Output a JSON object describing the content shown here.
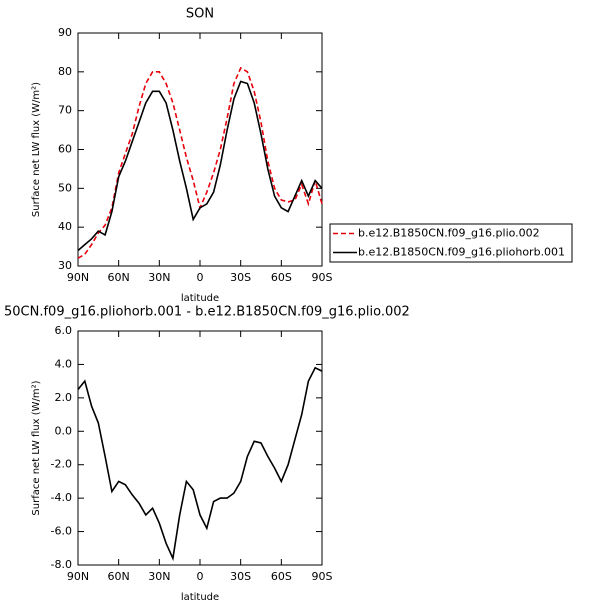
{
  "chart_data": [
    {
      "type": "line",
      "title": "SON",
      "xlabel": "latitude",
      "ylabel": "Surface net LW flux (W/m²)",
      "x": [
        90,
        85,
        80,
        75,
        70,
        65,
        60,
        55,
        50,
        45,
        40,
        35,
        30,
        25,
        20,
        15,
        10,
        5,
        0,
        -5,
        -10,
        -15,
        -20,
        -25,
        -30,
        -35,
        -40,
        -45,
        -50,
        -55,
        -60,
        -65,
        -70,
        -75,
        -80,
        -85,
        -90
      ],
      "series": [
        {
          "name": "b.e12.B1850CN.f09_g16.plio.002",
          "color": "#e8000b",
          "dash": true,
          "values": [
            32,
            33,
            35.5,
            38.5,
            40.5,
            45,
            54,
            59,
            64,
            71,
            77,
            80,
            80,
            77,
            72,
            65,
            58,
            52,
            45,
            49,
            54,
            60,
            68,
            77,
            81,
            80,
            75,
            67,
            57,
            50,
            47,
            46.5,
            47,
            51,
            46,
            52,
            46
          ]
        },
        {
          "name": "b.e12.B1850CN.f09_g16.pliohorb.001",
          "color": "#000000",
          "dash": false,
          "values": [
            34,
            35.5,
            37,
            39,
            38,
            44,
            53,
            57,
            62,
            67,
            72,
            75,
            75,
            72,
            65,
            57,
            50,
            42,
            45,
            46,
            49,
            56,
            65,
            73,
            77.5,
            77,
            72,
            64,
            55,
            48,
            45,
            44,
            48,
            52,
            48,
            52,
            50
          ]
        }
      ],
      "xlim": [
        90,
        -90
      ],
      "ylim": [
        30,
        90
      ],
      "xticks": [
        {
          "value": 90,
          "label": "90N"
        },
        {
          "value": 60,
          "label": "60N"
        },
        {
          "value": 30,
          "label": "30N"
        },
        0,
        {
          "value": -30,
          "label": "30S"
        },
        {
          "value": -60,
          "label": "60S"
        },
        {
          "value": -90,
          "label": "90S"
        }
      ],
      "yticks": [
        30,
        40,
        50,
        60,
        70,
        80,
        90
      ],
      "legend": "outside-right"
    },
    {
      "type": "line",
      "title": "50CN.f09_g16.pliohorb.001 - b.e12.B1850CN.f09_g16.plio.002",
      "xlabel": "latitude",
      "ylabel": "Surface net LW flux (W/m²)",
      "x": [
        90,
        85,
        80,
        75,
        70,
        65,
        60,
        55,
        50,
        45,
        40,
        35,
        30,
        25,
        20,
        15,
        10,
        5,
        0,
        -5,
        -10,
        -15,
        -20,
        -25,
        -30,
        -35,
        -40,
        -45,
        -50,
        -55,
        -60,
        -65,
        -70,
        -75,
        -80,
        -85,
        -90
      ],
      "series": [
        {
          "color": "#000000",
          "dash": false,
          "values": [
            2.5,
            3.0,
            1.5,
            0.5,
            -1.5,
            -3.6,
            -3.0,
            -3.2,
            -3.8,
            -4.3,
            -5.0,
            -4.6,
            -5.5,
            -6.7,
            -7.6,
            -5.0,
            -3.0,
            -3.5,
            -5.0,
            -5.8,
            -4.2,
            -4.0,
            -4.0,
            -3.7,
            -3.0,
            -1.5,
            -0.6,
            -0.7,
            -1.5,
            -2.2,
            -3.0,
            -2.0,
            -0.5,
            1.0,
            3.0,
            3.8,
            3.6
          ]
        }
      ],
      "xlim": [
        90,
        -90
      ],
      "ylim": [
        -8,
        6
      ],
      "xticks": [
        {
          "value": 90,
          "label": "90N"
        },
        {
          "value": 60,
          "label": "60N"
        },
        {
          "value": 30,
          "label": "30N"
        },
        0,
        {
          "value": -30,
          "label": "30S"
        },
        {
          "value": -60,
          "label": "60S"
        },
        {
          "value": -90,
          "label": "90S"
        }
      ],
      "yticks": [
        {
          "value": -8,
          "label": "-8.0"
        },
        {
          "value": -6,
          "label": "-6.0"
        },
        {
          "value": -4,
          "label": "-4.0"
        },
        {
          "value": -2,
          "label": "-2.0"
        },
        {
          "value": 0,
          "label": "0.0"
        },
        {
          "value": 2,
          "label": "2.0"
        },
        {
          "value": 4,
          "label": "4.0"
        },
        {
          "value": 6,
          "label": "6.0"
        }
      ]
    }
  ]
}
